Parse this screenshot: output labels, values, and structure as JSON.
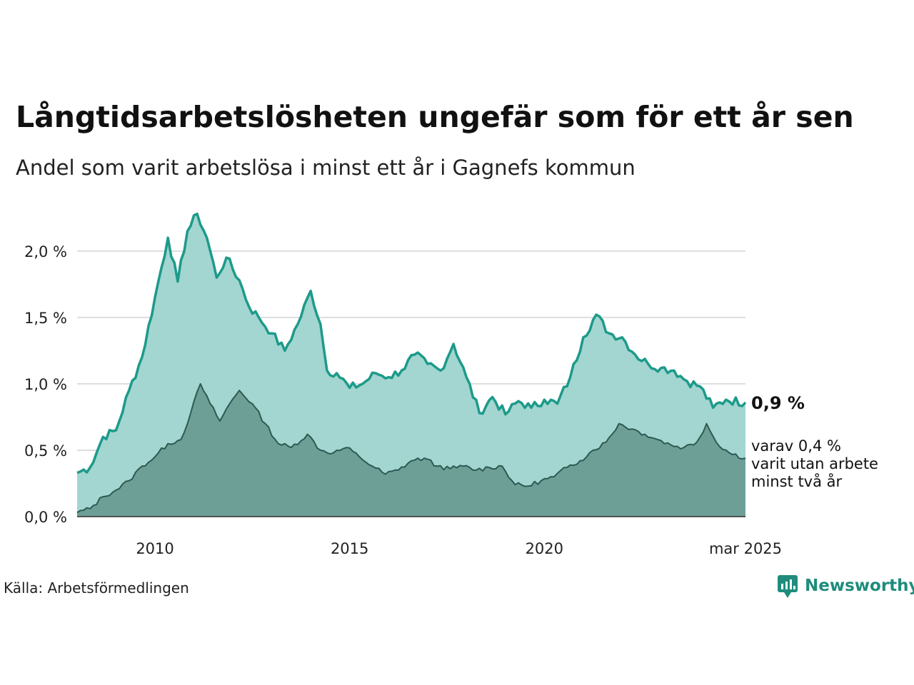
{
  "title": "Långtidsarbetslösheten ungefär som för ett år sen",
  "subtitle": "Andel som varit arbetslösa i minst ett år i Gagnefs kommun",
  "source": "Källa: Arbetsförmedlingen",
  "brand": "Newsworthy",
  "colors": {
    "series1_fill": "#a3d6d0",
    "series1_line": "#1d9a8a",
    "series2_fill": "#6e9f97",
    "series2_line": "#2d5a52",
    "grid": "#dddddd",
    "brand": "#1f8c7c"
  },
  "end_labels": {
    "value": "0,9 %",
    "note_lines": [
      "varav 0,4 %",
      "varit utan arbete",
      "minst två år"
    ]
  },
  "chart_data": {
    "type": "area",
    "x_start": "2008-01",
    "x_end": "2025-03",
    "frequency": "monthly",
    "ylim": [
      0,
      2.3
    ],
    "yticks": [
      0,
      0.5,
      1.0,
      1.5,
      2.0
    ],
    "ytick_labels": [
      "0,0 %",
      "0,5 %",
      "1,0 %",
      "1,5 %",
      "2,0 %"
    ],
    "xticks": [
      {
        "date": "2010-01",
        "label": "2010"
      },
      {
        "date": "2015-01",
        "label": "2015"
      },
      {
        "date": "2020-01",
        "label": "2020"
      },
      {
        "date": "2025-03",
        "label": "mar 2025"
      }
    ],
    "grid": true,
    "series": [
      {
        "anchors": [
          [
            "2008-01",
            0.33
          ],
          [
            "2008-05",
            0.37
          ],
          [
            "2008-09",
            0.6
          ],
          [
            "2009-01",
            0.65
          ],
          [
            "2009-05",
            0.95
          ],
          [
            "2009-09",
            1.2
          ],
          [
            "2010-01",
            1.65
          ],
          [
            "2010-05",
            2.1
          ],
          [
            "2010-08",
            1.77
          ],
          [
            "2010-11",
            2.15
          ],
          [
            "2011-02",
            2.28
          ],
          [
            "2011-05",
            2.1
          ],
          [
            "2011-08",
            1.8
          ],
          [
            "2011-11",
            1.95
          ],
          [
            "2012-03",
            1.78
          ],
          [
            "2012-06",
            1.58
          ],
          [
            "2012-09",
            1.5
          ],
          [
            "2013-01",
            1.38
          ],
          [
            "2013-05",
            1.25
          ],
          [
            "2013-09",
            1.45
          ],
          [
            "2014-01",
            1.7
          ],
          [
            "2014-04",
            1.45
          ],
          [
            "2014-06",
            1.1
          ],
          [
            "2014-09",
            1.08
          ],
          [
            "2015-01",
            0.97
          ],
          [
            "2015-05",
            1.0
          ],
          [
            "2015-09",
            1.08
          ],
          [
            "2016-01",
            1.05
          ],
          [
            "2016-05",
            1.1
          ],
          [
            "2016-09",
            1.22
          ],
          [
            "2017-01",
            1.15
          ],
          [
            "2017-05",
            1.1
          ],
          [
            "2017-09",
            1.3
          ],
          [
            "2018-01",
            1.05
          ],
          [
            "2018-05",
            0.78
          ],
          [
            "2018-09",
            0.9
          ],
          [
            "2019-01",
            0.77
          ],
          [
            "2019-05",
            0.87
          ],
          [
            "2019-09",
            0.82
          ],
          [
            "2020-01",
            0.88
          ],
          [
            "2020-05",
            0.85
          ],
          [
            "2020-09",
            1.05
          ],
          [
            "2021-01",
            1.35
          ],
          [
            "2021-05",
            1.52
          ],
          [
            "2021-09",
            1.38
          ],
          [
            "2022-01",
            1.35
          ],
          [
            "2022-05",
            1.22
          ],
          [
            "2022-09",
            1.15
          ],
          [
            "2023-01",
            1.12
          ],
          [
            "2023-05",
            1.1
          ],
          [
            "2023-09",
            1.02
          ],
          [
            "2024-01",
            0.98
          ],
          [
            "2024-05",
            0.82
          ],
          [
            "2024-09",
            0.88
          ],
          [
            "2025-03",
            0.86
          ]
        ]
      },
      {
        "anchors": [
          [
            "2008-01",
            0.03
          ],
          [
            "2008-05",
            0.06
          ],
          [
            "2008-09",
            0.15
          ],
          [
            "2009-01",
            0.2
          ],
          [
            "2009-05",
            0.27
          ],
          [
            "2009-09",
            0.38
          ],
          [
            "2010-01",
            0.45
          ],
          [
            "2010-05",
            0.55
          ],
          [
            "2010-09",
            0.58
          ],
          [
            "2010-12",
            0.78
          ],
          [
            "2011-03",
            1.0
          ],
          [
            "2011-06",
            0.85
          ],
          [
            "2011-09",
            0.72
          ],
          [
            "2011-12",
            0.85
          ],
          [
            "2012-03",
            0.95
          ],
          [
            "2012-07",
            0.85
          ],
          [
            "2012-11",
            0.7
          ],
          [
            "2013-03",
            0.55
          ],
          [
            "2013-07",
            0.52
          ],
          [
            "2013-12",
            0.62
          ],
          [
            "2014-04",
            0.5
          ],
          [
            "2014-08",
            0.48
          ],
          [
            "2014-12",
            0.52
          ],
          [
            "2015-04",
            0.45
          ],
          [
            "2015-08",
            0.38
          ],
          [
            "2015-12",
            0.32
          ],
          [
            "2016-04",
            0.35
          ],
          [
            "2016-08",
            0.42
          ],
          [
            "2016-12",
            0.44
          ],
          [
            "2017-04",
            0.38
          ],
          [
            "2017-08",
            0.36
          ],
          [
            "2017-12",
            0.38
          ],
          [
            "2018-04",
            0.35
          ],
          [
            "2018-08",
            0.37
          ],
          [
            "2018-12",
            0.38
          ],
          [
            "2019-04",
            0.24
          ],
          [
            "2019-08",
            0.23
          ],
          [
            "2019-12",
            0.27
          ],
          [
            "2020-04",
            0.3
          ],
          [
            "2020-08",
            0.37
          ],
          [
            "2020-12",
            0.42
          ],
          [
            "2021-04",
            0.5
          ],
          [
            "2021-08",
            0.56
          ],
          [
            "2021-12",
            0.7
          ],
          [
            "2022-04",
            0.66
          ],
          [
            "2022-08",
            0.62
          ],
          [
            "2022-12",
            0.58
          ],
          [
            "2023-04",
            0.54
          ],
          [
            "2023-08",
            0.52
          ],
          [
            "2023-12",
            0.56
          ],
          [
            "2024-03",
            0.7
          ],
          [
            "2024-06",
            0.56
          ],
          [
            "2024-10",
            0.48
          ],
          [
            "2025-03",
            0.44
          ]
        ]
      }
    ]
  }
}
